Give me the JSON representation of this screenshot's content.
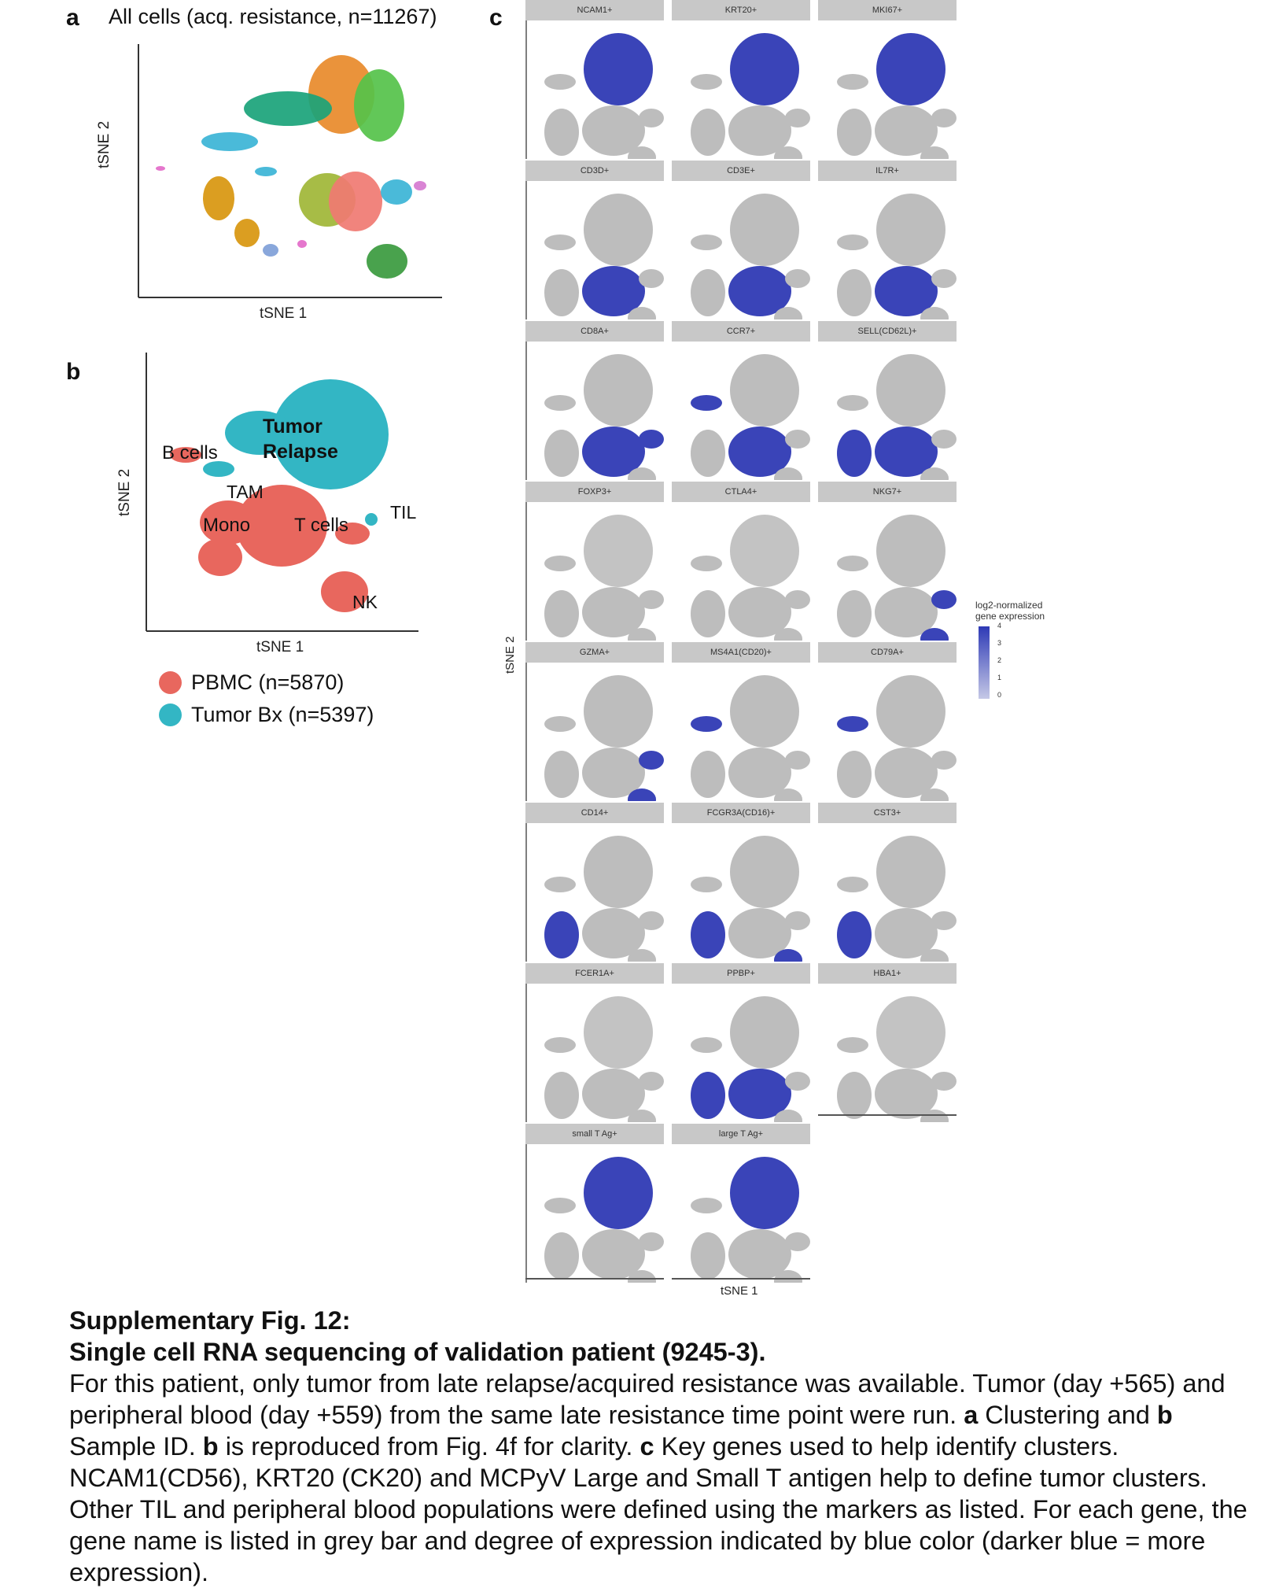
{
  "panel_a": {
    "letter": "a",
    "title": "All cells (acq. resistance, n=11267)",
    "xlabel": "tSNE 1",
    "ylabel": "tSNE 2"
  },
  "panel_b": {
    "letter": "b",
    "xlabel": "tSNE 1",
    "ylabel": "tSNE 2",
    "labels": {
      "tumor_relapse_1": "Tumor",
      "tumor_relapse_2": "Relapse",
      "b_cells": "B cells",
      "tam": "TAM",
      "mono": "Mono",
      "t_cells": "T cells",
      "til": "TIL",
      "nk": "NK"
    },
    "legend": [
      {
        "label": "PBMC (n=5870)",
        "color": "#e8675e"
      },
      {
        "label": "Tumor Bx (n=5397)",
        "color": "#33b6c4"
      }
    ]
  },
  "panel_c": {
    "letter": "c",
    "ylabel": "tSNE 2",
    "xlabel": "tSNE 1",
    "genes": [
      "NCAM1+",
      "KRT20+",
      "MKI67+",
      "CD3D+",
      "CD3E+",
      "IL7R+",
      "CD8A+",
      "CCR7+",
      "SELL(CD62L)+",
      "FOXP3+",
      "CTLA4+",
      "NKG7+",
      "GZMA+",
      "MS4A1(CD20)+",
      "CD79A+",
      "CD14+",
      "FCGR3A(CD16)+",
      "CST3+",
      "FCER1A+",
      "PPBP+",
      "HBA1+",
      "small T Ag+",
      "large T Ag+"
    ],
    "colorbar": {
      "title_1": "log2-normalized",
      "title_2": "gene expression",
      "ticks": [
        "4",
        "3",
        "2",
        "1",
        "0"
      ],
      "low_color": "#c5c8e6",
      "high_color": "#2e3ab6"
    }
  },
  "caption": {
    "title_1": "Supplementary Fig. 12:",
    "title_2": "Single cell RNA sequencing of validation patient (9245-3).",
    "body_1": "For this patient, only tumor from late relapse/acquired resistance was available. Tumor (day +565) and peripheral blood (day +559) from the same late resistance time point were run.",
    "bold_a": "a",
    "body_2": "Clustering and",
    "bold_b1": "b",
    "body_3": "Sample ID.",
    "bold_b2": "b",
    "body_4": "is reproduced from Fig. 4f for clarity.",
    "bold_c": "c",
    "body_5": "Key genes used to help identify clusters. NCAM1(CD56), KRT20 (CK20) and MCPyV Large and Small T antigen help to define tumor clusters. Other TIL and peripheral blood populations were defined using the markers as listed. For each gene, the gene name is listed in grey bar and degree of expression indicated by blue color (darker blue = more expression)."
  }
}
